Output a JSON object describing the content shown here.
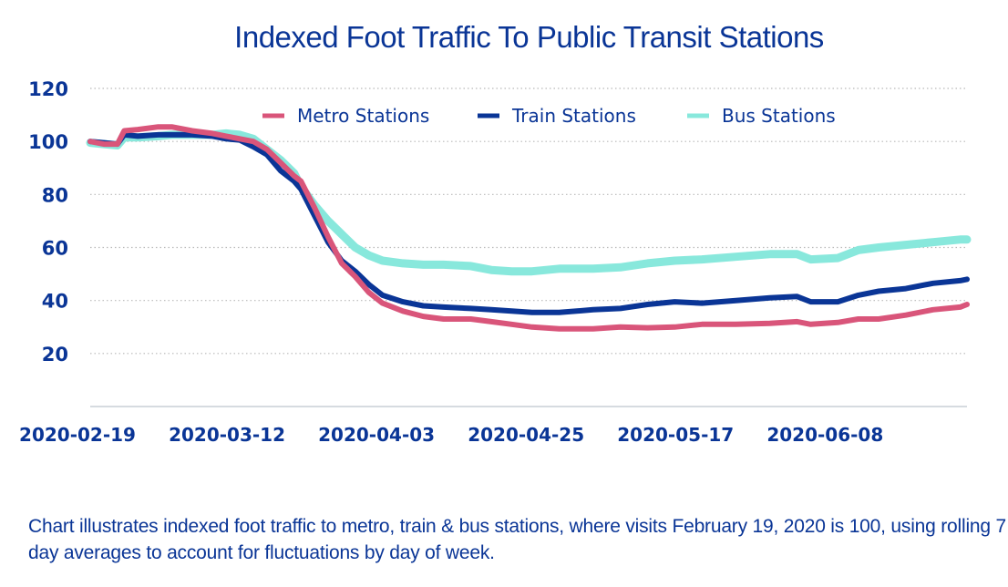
{
  "chart_data": {
    "type": "line",
    "title": "Indexed Foot Traffic To Public Transit Stations",
    "xlabel": "",
    "ylabel": "",
    "x_start": "2020-02-19",
    "x_unit": "days since 2020-02-19",
    "x_range_days": [
      0,
      129
    ],
    "ylim": [
      0,
      120
    ],
    "yticks": [
      20,
      40,
      60,
      80,
      100,
      120
    ],
    "xticks": [
      {
        "day": 0,
        "label": "2020-02-19"
      },
      {
        "day": 22,
        "label": "2020-03-12"
      },
      {
        "day": 44,
        "label": "2020-04-03"
      },
      {
        "day": 66,
        "label": "2020-04-25"
      },
      {
        "day": 88,
        "label": "2020-05-17"
      },
      {
        "day": 110,
        "label": "2020-06-08"
      }
    ],
    "grid": "horizontal-dotted",
    "legend_position": "top-center",
    "series": [
      {
        "name": "Metro Stations",
        "color": "#d9557a",
        "x": [
          0,
          2,
          4,
          5,
          7,
          10,
          12,
          15,
          18,
          20,
          22,
          24,
          26,
          28,
          30,
          31,
          33,
          35,
          37,
          39,
          41,
          43,
          46,
          49,
          52,
          56,
          59,
          62,
          65,
          69,
          74,
          78,
          82,
          86,
          90,
          95,
          100,
          104,
          106,
          110,
          113,
          116,
          120,
          124,
          128,
          129
        ],
        "y": [
          100,
          99,
          99,
          104,
          104.5,
          105.5,
          105.5,
          104,
          103,
          102,
          101,
          100,
          97,
          92,
          87,
          85,
          75,
          64,
          54,
          49,
          43,
          39,
          36,
          34,
          33,
          33,
          32,
          31,
          30,
          29.3,
          29.3,
          30,
          29.7,
          30,
          31,
          31,
          31.4,
          32,
          31,
          31.7,
          33,
          33,
          34.5,
          36.5,
          37.5,
          38.5
        ]
      },
      {
        "name": "Train Stations",
        "color": "#0a3596",
        "x": [
          0,
          2,
          4,
          5,
          7,
          10,
          12,
          15,
          18,
          20,
          22,
          24,
          26,
          28,
          30,
          31,
          33,
          35,
          37,
          39,
          41,
          43,
          46,
          49,
          52,
          56,
          59,
          62,
          65,
          69,
          74,
          78,
          82,
          86,
          90,
          95,
          100,
          104,
          106,
          110,
          113,
          116,
          120,
          124,
          128,
          129
        ],
        "y": [
          100,
          99.5,
          99,
          102.5,
          102,
          102.5,
          102.5,
          102.5,
          102,
          101,
          100.5,
          98,
          95,
          89,
          85,
          82,
          72,
          62,
          55,
          51,
          46,
          42,
          39.5,
          38,
          37.5,
          37,
          36.5,
          36,
          35.5,
          35.5,
          36.5,
          37,
          38.5,
          39.5,
          39,
          40,
          41,
          41.5,
          39.5,
          39.5,
          42,
          43.5,
          44.5,
          46.5,
          47.5,
          48
        ]
      },
      {
        "name": "Bus Stations",
        "color": "#88e8dc",
        "x": [
          0,
          2,
          4,
          5,
          7,
          10,
          12,
          15,
          18,
          20,
          22,
          24,
          26,
          28,
          30,
          31,
          33,
          35,
          37,
          39,
          41,
          43,
          46,
          49,
          52,
          56,
          59,
          62,
          65,
          69,
          74,
          78,
          82,
          86,
          90,
          95,
          100,
          104,
          106,
          110,
          113,
          116,
          120,
          124,
          128,
          129
        ],
        "y": [
          99.5,
          99,
          98.5,
          101.5,
          101.5,
          102,
          102.5,
          102.5,
          102.5,
          103,
          102.5,
          101,
          97,
          93,
          88,
          83,
          76,
          70,
          65,
          60,
          57,
          55,
          54,
          53.5,
          53.5,
          53,
          51.5,
          51,
          51,
          52,
          52,
          52.5,
          54,
          55,
          55.5,
          56.5,
          57.5,
          57.5,
          55.5,
          56,
          59,
          60,
          61,
          62,
          63,
          63
        ]
      }
    ]
  },
  "caption": "Chart illustrates indexed foot traffic to metro, train & bus stations, where visits February 19, 2020 is 100, using rolling 7 day averages to account for fluctuations by day of week."
}
